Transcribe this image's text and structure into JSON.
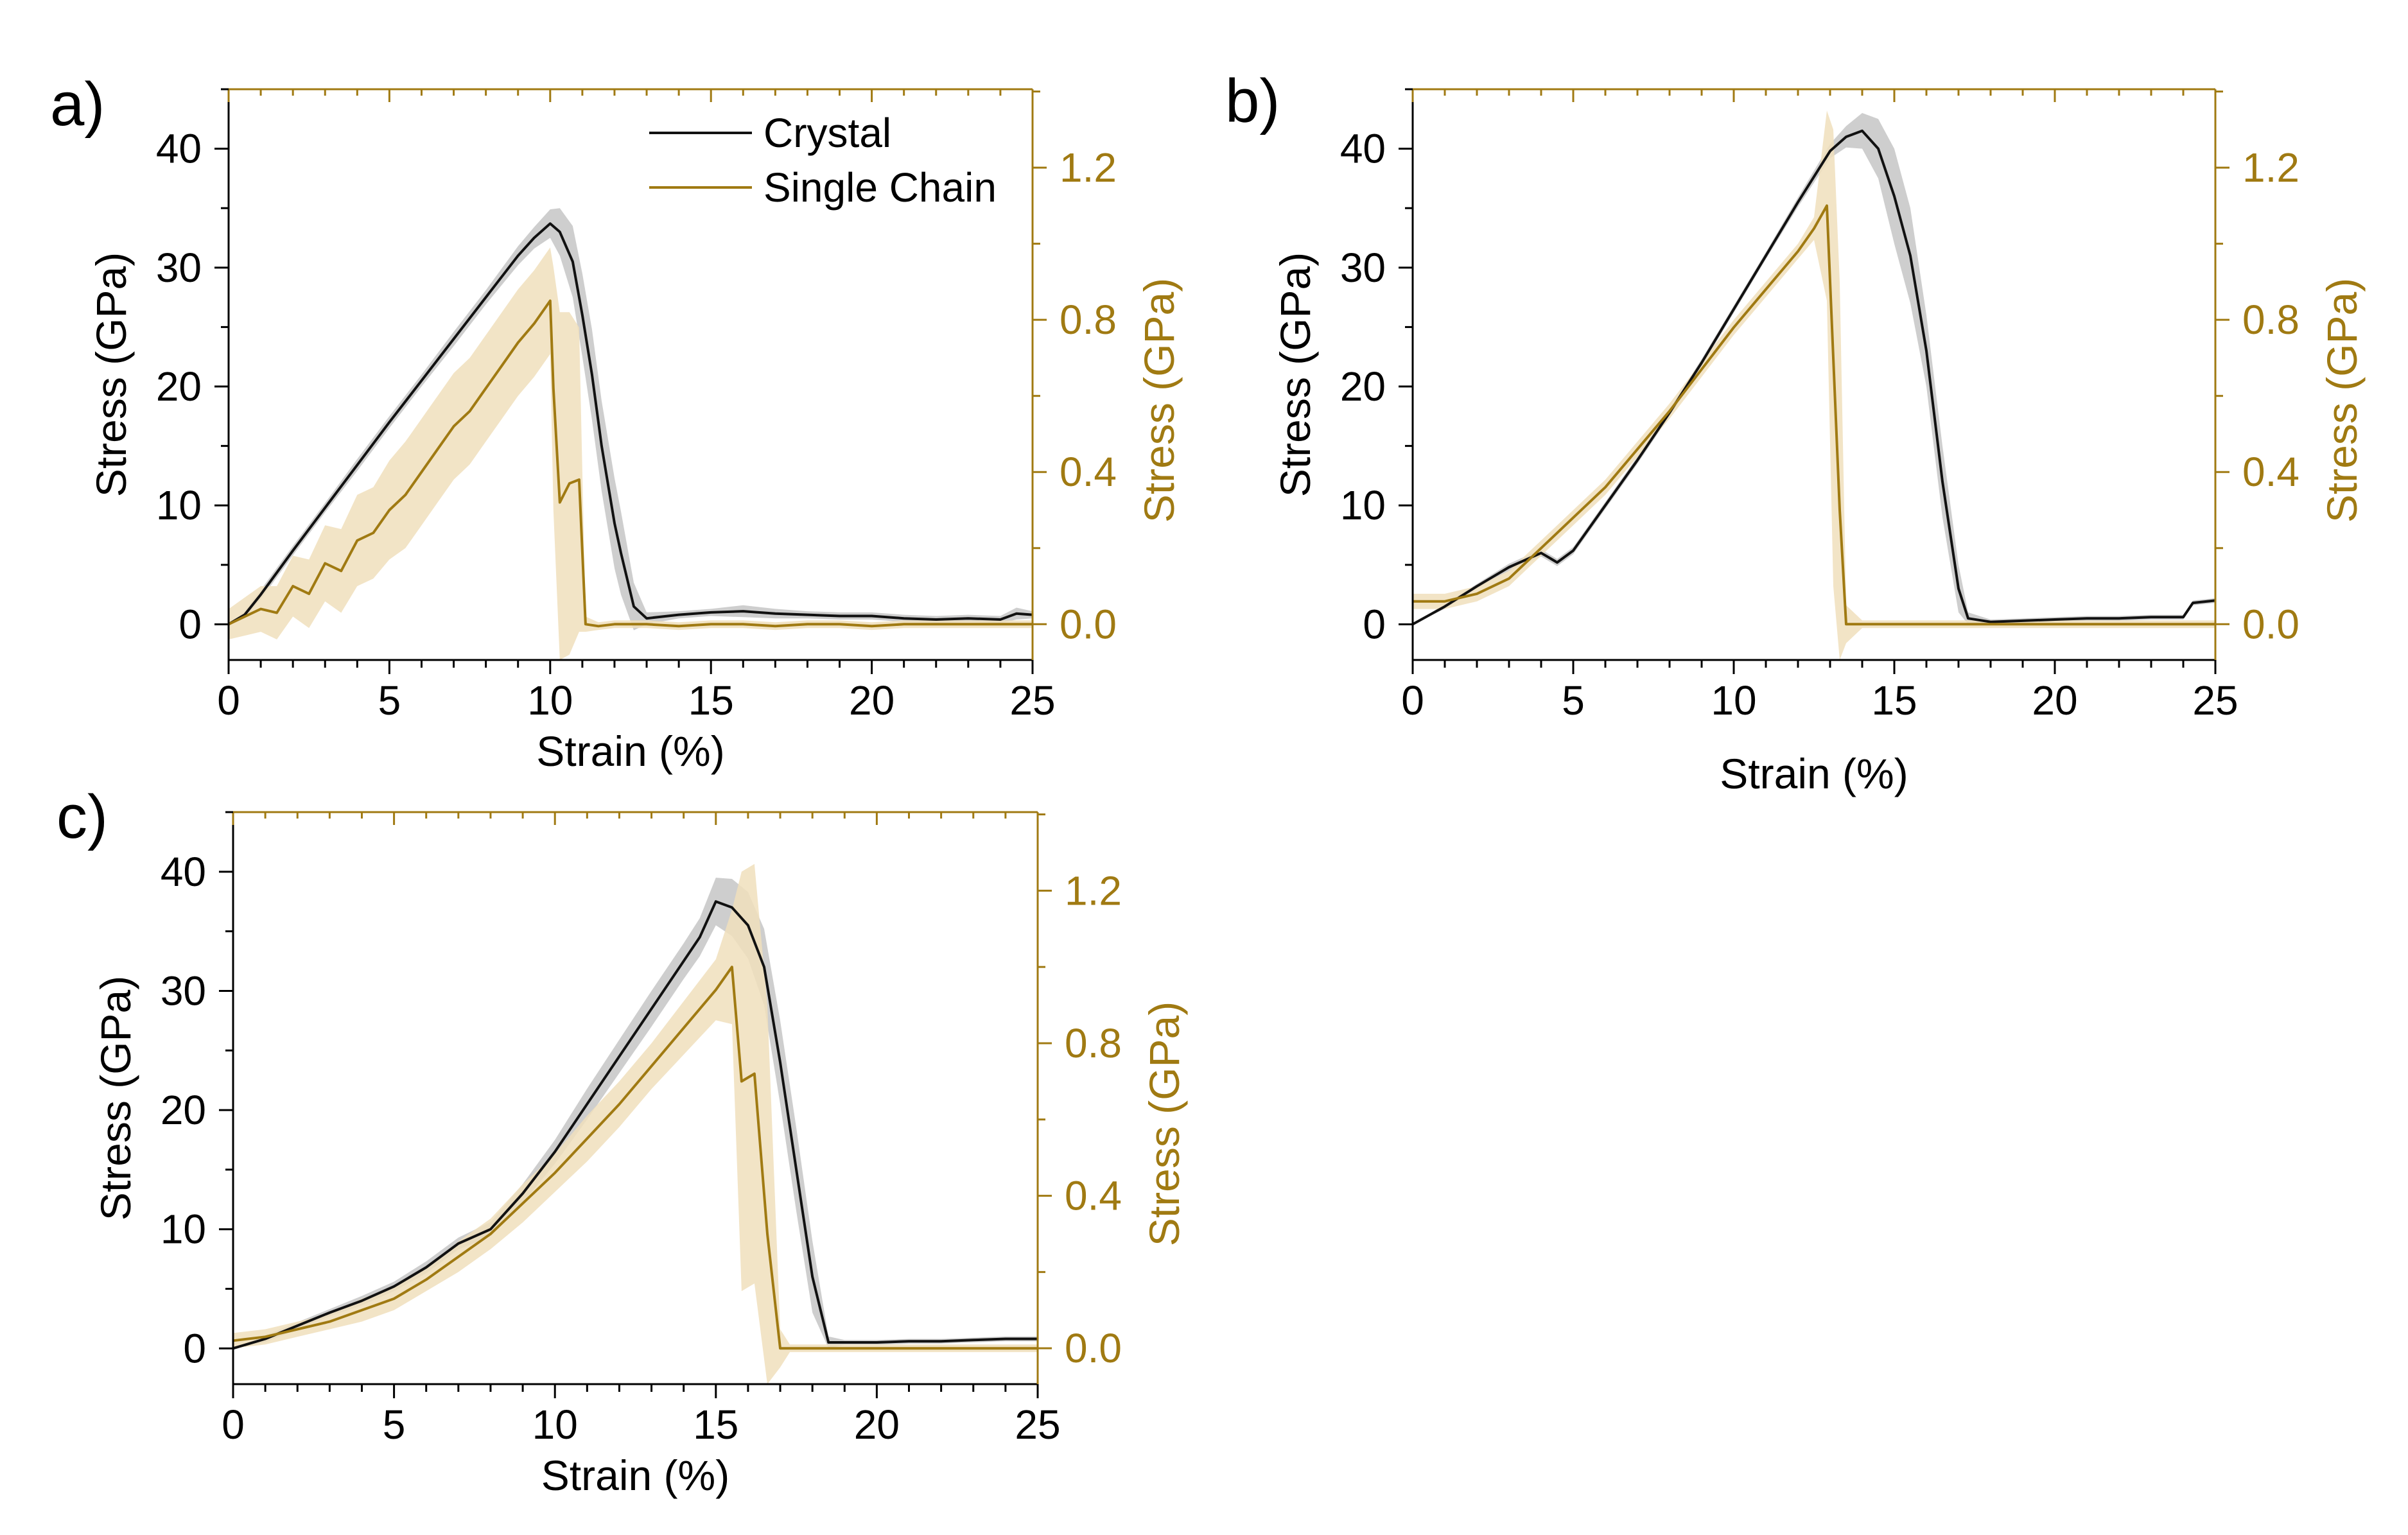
{
  "figure": {
    "colors": {
      "crystal_line": "#111111",
      "crystal_band": "#bdbdbd",
      "chain_line": "#a07a12",
      "chain_band": "#f0dfbc",
      "right_axis": "#a07a12"
    },
    "legend": {
      "crystal": "Crystal",
      "single_chain": "Single Chain"
    }
  },
  "chart_data": [
    {
      "panel_label": "a)",
      "type": "line",
      "xlabel": "Strain (%)",
      "ylabel_left": "Stress (GPa)",
      "ylabel_right": "Stress (GPa)",
      "xlim": [
        0,
        25
      ],
      "ylim_left": [
        -3,
        45
      ],
      "ylim_right": [
        -0.094,
        1.406
      ],
      "xticks": [
        "0",
        "5",
        "10",
        "15",
        "20",
        "25"
      ],
      "yticks_left": [
        "0",
        "10",
        "20",
        "30",
        "40"
      ],
      "yticks_right": [
        "0.0",
        "0.4",
        "0.8",
        "1.2"
      ],
      "legend_visible": true,
      "legend_position": "top-right",
      "series": [
        {
          "name": "Crystal",
          "axis": "left",
          "x": [
            0,
            0.5,
            1,
            2,
            3,
            4,
            5,
            6,
            7,
            8,
            9,
            9.5,
            10,
            10.3,
            10.7,
            11,
            11.3,
            11.6,
            12,
            12.2,
            12.6,
            13,
            14,
            15,
            16,
            17,
            18,
            19,
            20,
            21,
            22,
            23,
            24,
            24.5,
            25
          ],
          "y": [
            0,
            0.8,
            2.5,
            6.2,
            9.8,
            13.4,
            17,
            20.5,
            24,
            27.5,
            31,
            32.5,
            33.7,
            33,
            30.5,
            26,
            21,
            15,
            8.5,
            6,
            1.5,
            0.5,
            0.8,
            1,
            1.1,
            0.9,
            0.8,
            0.7,
            0.7,
            0.5,
            0.4,
            0.5,
            0.4,
            0.9,
            0.8
          ],
          "band": [
            0,
            0.3,
            0.4,
            0.4,
            0.4,
            0.5,
            0.5,
            0.5,
            0.6,
            0.6,
            0.8,
            0.9,
            1.2,
            2,
            3,
            3.5,
            3.8,
            3.8,
            3.8,
            3.5,
            2,
            0.5,
            0.3,
            0.3,
            0.5,
            0.4,
            0.3,
            0.3,
            0.3,
            0.3,
            0.3,
            0.3,
            0.3,
            0.5,
            0.3
          ]
        },
        {
          "name": "Single Chain",
          "axis": "right",
          "x": [
            0,
            0.5,
            1,
            1.5,
            2,
            2.5,
            3,
            3.5,
            4,
            4.5,
            5,
            5.5,
            6,
            6.5,
            7,
            7.5,
            8,
            8.5,
            9,
            9.5,
            10,
            10.1,
            10.3,
            10.6,
            10.9,
            11.1,
            11.5,
            12,
            13,
            14,
            15,
            16,
            17,
            18,
            19,
            20,
            21,
            22,
            23,
            24,
            25
          ],
          "y": [
            0.0,
            0.02,
            0.04,
            0.03,
            0.1,
            0.08,
            0.16,
            0.14,
            0.22,
            0.24,
            0.3,
            0.34,
            0.4,
            0.46,
            0.52,
            0.56,
            0.62,
            0.68,
            0.74,
            0.79,
            0.85,
            0.62,
            0.32,
            0.37,
            0.38,
            0.0,
            -0.005,
            0.0,
            0.0,
            -0.005,
            0.0,
            0.0,
            -0.005,
            0.0,
            0.0,
            -0.005,
            0.0,
            0.0,
            0.0,
            0.0,
            0.0
          ],
          "band": [
            0.04,
            0.05,
            0.06,
            0.07,
            0.08,
            0.09,
            0.1,
            0.11,
            0.12,
            0.12,
            0.13,
            0.14,
            0.14,
            0.14,
            0.14,
            0.14,
            0.14,
            0.14,
            0.14,
            0.14,
            0.14,
            0.32,
            0.5,
            0.45,
            0.4,
            0.02,
            0.01,
            0.01,
            0.01,
            0.01,
            0.01,
            0.01,
            0.01,
            0.01,
            0.01,
            0.01,
            0.01,
            0.01,
            0.01,
            0.01,
            0.01
          ]
        }
      ]
    },
    {
      "panel_label": "b)",
      "type": "line",
      "xlabel": "Strain (%)",
      "ylabel_left": "Stress (GPa)",
      "ylabel_right": "Stress (GPa)",
      "xlim": [
        0,
        25
      ],
      "ylim_left": [
        -3,
        45
      ],
      "ylim_right": [
        -0.094,
        1.406
      ],
      "xticks": [
        "0",
        "5",
        "10",
        "15",
        "20",
        "25"
      ],
      "yticks_left": [
        "0",
        "10",
        "20",
        "30",
        "40"
      ],
      "yticks_right": [
        "0.0",
        "0.4",
        "0.8",
        "1.2"
      ],
      "legend_visible": false,
      "legend_position": "none",
      "series": [
        {
          "name": "Crystal",
          "axis": "left",
          "x": [
            0,
            1,
            2,
            3,
            4,
            4.5,
            5,
            6,
            7,
            8,
            9,
            10,
            11,
            12,
            13,
            13.5,
            14,
            14.5,
            15,
            15.5,
            16,
            16.5,
            17,
            17.3,
            18,
            19,
            20,
            21,
            22,
            23,
            24,
            24.3,
            25
          ],
          "y": [
            0,
            1.5,
            3.2,
            4.8,
            6,
            5.2,
            6.2,
            10,
            13.8,
            17.8,
            22,
            26.5,
            31,
            35.5,
            39.8,
            41,
            41.5,
            40,
            36,
            31,
            23,
            12,
            3,
            0.5,
            0.2,
            0.3,
            0.4,
            0.5,
            0.5,
            0.6,
            0.6,
            1.8,
            2.0
          ],
          "band": [
            0,
            0.2,
            0.2,
            0.3,
            0.3,
            0.3,
            0.3,
            0.3,
            0.3,
            0.3,
            0.3,
            0.3,
            0.3,
            0.4,
            0.6,
            0.9,
            1.5,
            2.5,
            4,
            4,
            3,
            3,
            2,
            0.5,
            0.2,
            0.2,
            0.2,
            0.2,
            0.2,
            0.2,
            0.2,
            0.2,
            0.2
          ]
        },
        {
          "name": "Single Chain",
          "axis": "right",
          "x": [
            0,
            1,
            2,
            3,
            4,
            5,
            6,
            7,
            8,
            9,
            10,
            11,
            12,
            12.5,
            12.9,
            13.1,
            13.3,
            13.5,
            14,
            15,
            16,
            17,
            18,
            19,
            20,
            21,
            22,
            23,
            24,
            25
          ],
          "y": [
            0.06,
            0.06,
            0.08,
            0.12,
            0.2,
            0.28,
            0.36,
            0.46,
            0.56,
            0.67,
            0.78,
            0.88,
            0.98,
            1.04,
            1.1,
            0.7,
            0.3,
            0.0,
            0.0,
            0.0,
            0.0,
            0.0,
            0.0,
            0.0,
            0.0,
            0.0,
            0.0,
            0.0,
            0.0,
            0.0
          ],
          "band": [
            0.02,
            0.02,
            0.02,
            0.02,
            0.02,
            0.02,
            0.02,
            0.02,
            0.02,
            0.02,
            0.02,
            0.02,
            0.02,
            0.03,
            0.25,
            0.6,
            0.6,
            0.05,
            0.01,
            0.01,
            0.01,
            0.01,
            0.01,
            0.01,
            0.01,
            0.01,
            0.01,
            0.01,
            0.01,
            0.01
          ]
        }
      ]
    },
    {
      "panel_label": "c)",
      "type": "line",
      "xlabel": "Strain (%)",
      "ylabel_left": "Stress (GPa)",
      "ylabel_right": "Stress (GPa)",
      "xlim": [
        0,
        25
      ],
      "ylim_left": [
        -3,
        45
      ],
      "ylim_right": [
        -0.094,
        1.406
      ],
      "xticks": [
        "0",
        "5",
        "10",
        "15",
        "20",
        "25"
      ],
      "yticks_left": [
        "0",
        "10",
        "20",
        "30",
        "40"
      ],
      "yticks_right": [
        "0.0",
        "0.4",
        "0.8",
        "1.2"
      ],
      "legend_visible": false,
      "legend_position": "none",
      "series": [
        {
          "name": "Crystal",
          "axis": "left",
          "x": [
            0,
            1,
            2,
            3,
            4,
            5,
            6,
            7,
            8,
            9,
            10,
            11,
            12,
            13,
            14,
            14.5,
            15,
            15.5,
            16,
            16.5,
            17,
            17.5,
            18,
            18.5,
            19,
            20,
            21,
            22,
            23,
            24,
            25
          ],
          "y": [
            0,
            0.8,
            1.9,
            3,
            4,
            5.2,
            6.8,
            8.8,
            10,
            13,
            16.5,
            20.5,
            24.5,
            28.5,
            32.5,
            34.5,
            37.5,
            37,
            35.5,
            32,
            24,
            15,
            6,
            0.5,
            0.5,
            0.5,
            0.6,
            0.6,
            0.7,
            0.8,
            0.8
          ],
          "band": [
            0,
            0.3,
            0.3,
            0.3,
            0.4,
            0.4,
            0.5,
            0.5,
            0.6,
            0.8,
            1,
            1.3,
            1.4,
            1.5,
            1.5,
            1.6,
            2,
            2.4,
            2.8,
            3.2,
            3.5,
            3.5,
            3,
            0.5,
            0.2,
            0.2,
            0.2,
            0.2,
            0.2,
            0.2,
            0.2
          ]
        },
        {
          "name": "Single Chain",
          "axis": "right",
          "x": [
            0,
            1,
            2,
            3,
            4,
            5,
            6,
            7,
            8,
            9,
            10,
            11,
            12,
            13,
            14,
            15,
            15.5,
            15.8,
            16.2,
            16.6,
            17,
            17.3,
            18,
            19,
            20,
            21,
            22,
            23,
            24,
            25
          ],
          "y": [
            0.02,
            0.03,
            0.05,
            0.07,
            0.1,
            0.13,
            0.18,
            0.24,
            0.3,
            0.38,
            0.46,
            0.55,
            0.64,
            0.74,
            0.84,
            0.94,
            1.0,
            0.7,
            0.72,
            0.3,
            0.0,
            0.0,
            0.0,
            0.0,
            0.0,
            0.0,
            0.0,
            0.0,
            0.0,
            0.0
          ],
          "band": [
            0.02,
            0.02,
            0.02,
            0.02,
            0.03,
            0.03,
            0.03,
            0.04,
            0.04,
            0.05,
            0.05,
            0.06,
            0.06,
            0.06,
            0.07,
            0.08,
            0.15,
            0.55,
            0.55,
            0.6,
            0.05,
            0.01,
            0.01,
            0.01,
            0.01,
            0.01,
            0.01,
            0.01,
            0.01,
            0.01
          ]
        }
      ]
    }
  ]
}
